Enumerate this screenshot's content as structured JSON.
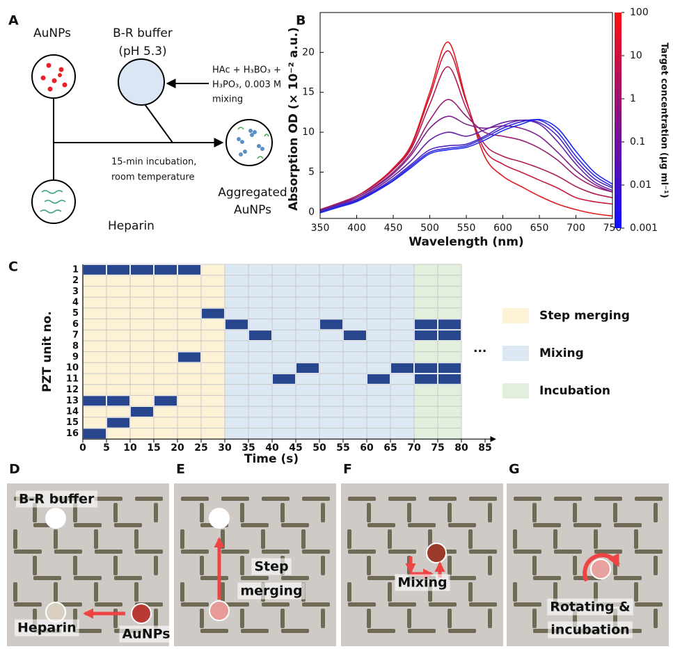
{
  "panel_a": {
    "letter": "A",
    "aunps": "AuNPs",
    "buffer": "B-R buffer",
    "ph": "(pH 5.3)",
    "reagent_lines": [
      "HAc + H₃BO₃ +",
      "H₃PO₃, 0.003 M",
      "mixing"
    ],
    "incubation_lines": [
      "15-min incubation,",
      "room temperature"
    ],
    "aggregated_lines": [
      "Aggregated",
      "AuNPs"
    ],
    "heparin": "Heparin"
  },
  "chart_data": [
    {
      "type": "line",
      "panel": "B",
      "x_label": "Wavelength (nm)",
      "y_label": "Absorption OD (× 10⁻² a.u.)",
      "x": [
        350,
        375,
        400,
        425,
        450,
        475,
        500,
        525,
        550,
        575,
        600,
        625,
        650,
        675,
        700,
        725,
        750
      ],
      "series": [
        {
          "color": "#e31a1c",
          "values": [
            0.3,
            1.1,
            2.0,
            3.5,
            5.5,
            8.5,
            15.0,
            21.3,
            14.0,
            7.0,
            4.5,
            3.2,
            2.0,
            1.0,
            0.3,
            -0.2,
            -0.5
          ]
        },
        {
          "color": "#c91a3a",
          "values": [
            0.3,
            1.1,
            2.0,
            3.4,
            5.4,
            8.3,
            14.5,
            20.2,
            13.8,
            7.8,
            6.0,
            5.0,
            4.0,
            3.0,
            1.8,
            1.3,
            1.0
          ]
        },
        {
          "color": "#b01d55",
          "values": [
            0.3,
            1.1,
            2.0,
            3.4,
            5.3,
            8.0,
            13.5,
            18.2,
            13.0,
            8.5,
            7.0,
            6.3,
            5.5,
            4.5,
            3.2,
            2.3,
            1.8
          ]
        },
        {
          "color": "#961f70",
          "values": [
            0.2,
            1.0,
            1.8,
            3.2,
            5.0,
            7.5,
            11.5,
            14.1,
            12.0,
            10.0,
            9.5,
            9.0,
            8.0,
            6.5,
            4.5,
            3.2,
            2.5
          ]
        },
        {
          "color": "#7d218b",
          "values": [
            0.2,
            1.0,
            1.8,
            3.1,
            4.8,
            7.2,
            10.5,
            12.0,
            11.0,
            10.5,
            10.8,
            10.5,
            9.5,
            7.5,
            5.2,
            3.5,
            2.5
          ]
        },
        {
          "color": "#6423a5",
          "values": [
            0.1,
            0.9,
            1.6,
            2.9,
            4.5,
            6.5,
            9.0,
            10.0,
            9.5,
            10.3,
            11.2,
            11.5,
            11.0,
            8.8,
            6.0,
            3.8,
            2.7
          ]
        },
        {
          "color": "#4a25c0",
          "values": [
            0.0,
            0.8,
            1.5,
            2.7,
            4.2,
            6.0,
            7.8,
            8.3,
            8.5,
            9.5,
            10.8,
            11.5,
            11.2,
            9.5,
            6.5,
            4.2,
            3.0
          ]
        },
        {
          "color": "#3127da",
          "values": [
            0.0,
            0.7,
            1.4,
            2.6,
            4.0,
            5.8,
            7.5,
            8.0,
            8.3,
            9.3,
            10.5,
            11.3,
            11.5,
            10.0,
            7.0,
            4.6,
            3.2
          ]
        },
        {
          "color": "#1829f5",
          "values": [
            -0.1,
            0.6,
            1.3,
            2.5,
            3.9,
            5.6,
            7.3,
            7.8,
            8.1,
            9.0,
            10.2,
            11.0,
            11.6,
            10.5,
            7.6,
            5.0,
            3.5
          ]
        }
      ],
      "xlim": [
        350,
        750
      ],
      "xticks": [
        350,
        400,
        450,
        500,
        550,
        600,
        650,
        700,
        750
      ],
      "ylim": [
        -0.8,
        25
      ],
      "yticks": [
        0,
        5,
        10,
        15,
        20
      ],
      "colorbar": {
        "label": "Target concentration (μg ml⁻¹)",
        "log": true,
        "lim": [
          0.001,
          100
        ],
        "ticks": [
          100,
          10,
          1,
          0.1,
          0.01,
          0.001
        ],
        "colors": [
          "#1010ff",
          "#ff1010"
        ]
      }
    },
    {
      "type": "schedule",
      "panel": "C",
      "x_label": "Time (s)",
      "y_label": "PZT unit no.",
      "xlim": [
        0,
        85
      ],
      "xticks": [
        0,
        5,
        10,
        15,
        20,
        25,
        30,
        35,
        40,
        45,
        50,
        55,
        60,
        65,
        70,
        75,
        80,
        85
      ],
      "rows": [
        1,
        2,
        3,
        4,
        5,
        6,
        7,
        8,
        9,
        10,
        11,
        12,
        13,
        14,
        15,
        16
      ],
      "phases": [
        {
          "name": "Step merging",
          "color": "#fdf2d6",
          "start": 0,
          "end": 30
        },
        {
          "name": "Mixing",
          "color": "#dde8f5",
          "start": 30,
          "end": 70
        },
        {
          "name": "Incubation",
          "color": "#e2efdc",
          "start": 70,
          "end": 80
        }
      ],
      "block_color": "#27468e",
      "blocks": [
        {
          "row": 1,
          "start": 0,
          "end": 5
        },
        {
          "row": 1,
          "start": 5,
          "end": 10
        },
        {
          "row": 1,
          "start": 10,
          "end": 15
        },
        {
          "row": 1,
          "start": 15,
          "end": 20
        },
        {
          "row": 1,
          "start": 20,
          "end": 25
        },
        {
          "row": 16,
          "start": 0,
          "end": 5
        },
        {
          "row": 13,
          "start": 0,
          "end": 5
        },
        {
          "row": 13,
          "start": 5,
          "end": 10
        },
        {
          "row": 15,
          "start": 5,
          "end": 10
        },
        {
          "row": 14,
          "start": 10,
          "end": 15
        },
        {
          "row": 13,
          "start": 15,
          "end": 20
        },
        {
          "row": 9,
          "start": 20,
          "end": 25
        },
        {
          "row": 5,
          "start": 25,
          "end": 30
        },
        {
          "row": 6,
          "start": 30,
          "end": 35
        },
        {
          "row": 7,
          "start": 35,
          "end": 40
        },
        {
          "row": 11,
          "start": 40,
          "end": 45
        },
        {
          "row": 10,
          "start": 45,
          "end": 50
        },
        {
          "row": 6,
          "start": 50,
          "end": 55
        },
        {
          "row": 7,
          "start": 55,
          "end": 60
        },
        {
          "row": 11,
          "start": 60,
          "end": 65
        },
        {
          "row": 10,
          "start": 65,
          "end": 70
        },
        {
          "row": 6,
          "start": 70,
          "end": 75
        },
        {
          "row": 6,
          "start": 75,
          "end": 80
        },
        {
          "row": 7,
          "start": 70,
          "end": 75
        },
        {
          "row": 7,
          "start": 75,
          "end": 80
        },
        {
          "row": 10,
          "start": 70,
          "end": 75
        },
        {
          "row": 10,
          "start": 75,
          "end": 80
        },
        {
          "row": 11,
          "start": 70,
          "end": 75
        },
        {
          "row": 11,
          "start": 75,
          "end": 80
        }
      ],
      "more": "···"
    }
  ],
  "photos": [
    {
      "letter": "D",
      "labels": [
        "B-R buffer",
        "Heparin",
        "AuNPs"
      ]
    },
    {
      "letter": "E",
      "labels": [
        "Step",
        "merging"
      ]
    },
    {
      "letter": "F",
      "labels": [
        "Mixing"
      ]
    },
    {
      "letter": "G",
      "labels": [
        "Rotating &",
        "incubation"
      ]
    }
  ]
}
